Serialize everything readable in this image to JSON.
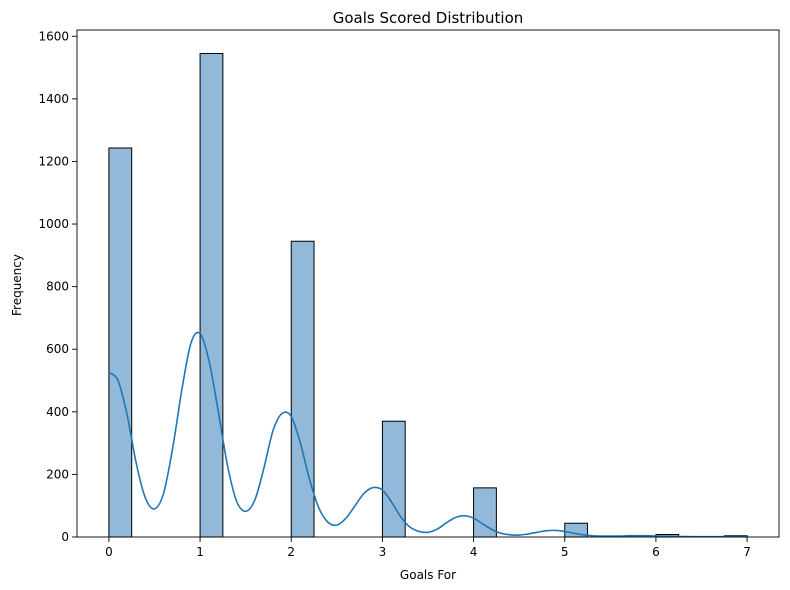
{
  "chart_data": {
    "type": "bar",
    "title": "Goals Scored Distribution",
    "xlabel": "Goals For",
    "ylabel": "Frequency",
    "xlim": [
      -0.35,
      7.35
    ],
    "ylim": [
      0,
      1620
    ],
    "xticks": [
      0,
      1,
      2,
      3,
      4,
      5,
      6,
      7
    ],
    "yticks": [
      0,
      200,
      400,
      600,
      800,
      1000,
      1200,
      1400,
      1600
    ],
    "bins": [
      {
        "x0": 0.0,
        "x1": 0.25,
        "value": 1243
      },
      {
        "x0": 0.25,
        "x1": 0.5,
        "value": 0
      },
      {
        "x0": 0.5,
        "x1": 0.75,
        "value": 0
      },
      {
        "x0": 0.75,
        "x1": 1.0,
        "value": 0
      },
      {
        "x0": 1.0,
        "x1": 1.25,
        "value": 1545
      },
      {
        "x0": 1.25,
        "x1": 1.5,
        "value": 0
      },
      {
        "x0": 1.5,
        "x1": 1.75,
        "value": 0
      },
      {
        "x0": 1.75,
        "x1": 2.0,
        "value": 0
      },
      {
        "x0": 2.0,
        "x1": 2.25,
        "value": 945
      },
      {
        "x0": 2.25,
        "x1": 2.5,
        "value": 0
      },
      {
        "x0": 2.5,
        "x1": 2.75,
        "value": 0
      },
      {
        "x0": 2.75,
        "x1": 3.0,
        "value": 0
      },
      {
        "x0": 3.0,
        "x1": 3.25,
        "value": 370
      },
      {
        "x0": 3.25,
        "x1": 3.5,
        "value": 0
      },
      {
        "x0": 3.5,
        "x1": 3.75,
        "value": 0
      },
      {
        "x0": 3.75,
        "x1": 4.0,
        "value": 0
      },
      {
        "x0": 4.0,
        "x1": 4.25,
        "value": 157
      },
      {
        "x0": 4.25,
        "x1": 4.5,
        "value": 0
      },
      {
        "x0": 4.5,
        "x1": 4.75,
        "value": 0
      },
      {
        "x0": 4.75,
        "x1": 5.0,
        "value": 0
      },
      {
        "x0": 5.0,
        "x1": 5.25,
        "value": 44
      },
      {
        "x0": 5.25,
        "x1": 5.5,
        "value": 0
      },
      {
        "x0": 5.5,
        "x1": 5.75,
        "value": 0
      },
      {
        "x0": 5.75,
        "x1": 6.0,
        "value": 0
      },
      {
        "x0": 6.0,
        "x1": 6.25,
        "value": 8
      },
      {
        "x0": 6.25,
        "x1": 6.5,
        "value": 0
      },
      {
        "x0": 6.5,
        "x1": 6.75,
        "value": 0
      },
      {
        "x0": 6.75,
        "x1": 7.0,
        "value": 4
      }
    ],
    "kde": {
      "x": [
        0,
        0.1,
        0.2,
        0.3,
        0.4,
        0.5,
        0.6,
        0.7,
        0.8,
        0.9,
        1.0,
        1.1,
        1.2,
        1.3,
        1.4,
        1.5,
        1.6,
        1.7,
        1.8,
        1.9,
        2.0,
        2.1,
        2.2,
        2.3,
        2.4,
        2.5,
        2.6,
        2.7,
        2.8,
        2.9,
        3.0,
        3.1,
        3.2,
        3.3,
        3.4,
        3.5,
        3.6,
        3.7,
        3.8,
        3.9,
        4.0,
        4.1,
        4.2,
        4.3,
        4.4,
        4.5,
        4.6,
        4.7,
        4.8,
        4.9,
        5.0,
        5.1,
        5.2,
        5.3,
        5.4,
        5.5,
        5.6,
        5.7,
        5.8,
        5.9,
        6.0,
        6.2,
        6.4,
        6.6,
        6.8,
        7.0
      ],
      "y": [
        525,
        500,
        390,
        235,
        125,
        90,
        140,
        285,
        470,
        620,
        650,
        560,
        400,
        230,
        115,
        82,
        118,
        220,
        340,
        395,
        385,
        300,
        185,
        95,
        48,
        38,
        60,
        100,
        140,
        158,
        150,
        112,
        65,
        32,
        18,
        15,
        25,
        45,
        62,
        68,
        60,
        42,
        24,
        12,
        7,
        6,
        10,
        15,
        20,
        21,
        18,
        12,
        7,
        4,
        3,
        3,
        3,
        4,
        4,
        4,
        3,
        2,
        1,
        1,
        1,
        1
      ]
    },
    "colors": {
      "bar_fill": "#92b9d9",
      "bar_edge": "#000000",
      "kde_line": "#1f77b4"
    }
  }
}
